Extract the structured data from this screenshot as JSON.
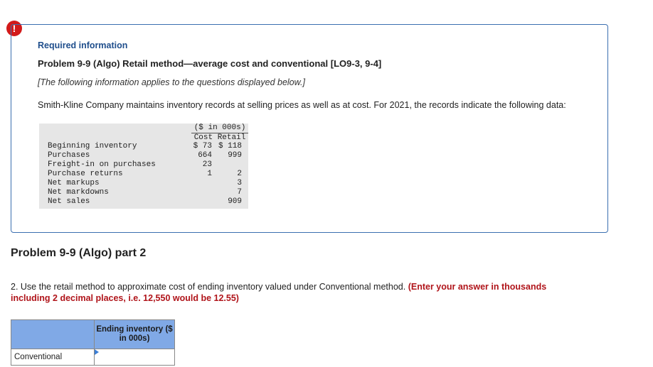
{
  "alert": {
    "symbol": "!"
  },
  "info": {
    "required_label": "Required information",
    "problem_title": "Problem 9-9 (Algo) Retail method—average cost and conventional [LO9-3, 9-4]",
    "note": "[The following information applies to the questions displayed below.]",
    "intro": "Smith-Kline Company maintains inventory records at selling prices as well as at cost. For 2021, the records indicate the following data:"
  },
  "data_table": {
    "unit_header": "($ in 000s)",
    "col_cost": "Cost",
    "col_retail": "Retail",
    "rows": [
      {
        "label": "Beginning inventory",
        "cost": "$ 73",
        "retail": "$ 118"
      },
      {
        "label": "Purchases",
        "cost": "664",
        "retail": "999"
      },
      {
        "label": "Freight-in on purchases",
        "cost": "23",
        "retail": ""
      },
      {
        "label": "Purchase returns",
        "cost": "1",
        "retail": "2"
      },
      {
        "label": "Net markups",
        "cost": "",
        "retail": "3"
      },
      {
        "label": "Net markdowns",
        "cost": "",
        "retail": "7"
      },
      {
        "label": "Net sales",
        "cost": "",
        "retail": "909"
      }
    ]
  },
  "part": {
    "title": "Problem 9-9 (Algo) part 2",
    "question": "2. Use the retail method to approximate cost of ending inventory valued under Conventional method.",
    "instruction": "(Enter your answer in thousands including 2 decimal places, i.e. 12,550 would be 12.55)"
  },
  "answer_table": {
    "header": "Ending inventory ($ in 000s)",
    "row_label": "Conventional",
    "value": ""
  },
  "colors": {
    "accent_blue": "#3b6fb0",
    "header_blue": "#80a9e6",
    "instruction_red": "#b0141a",
    "alert_red": "#d21a1a"
  }
}
